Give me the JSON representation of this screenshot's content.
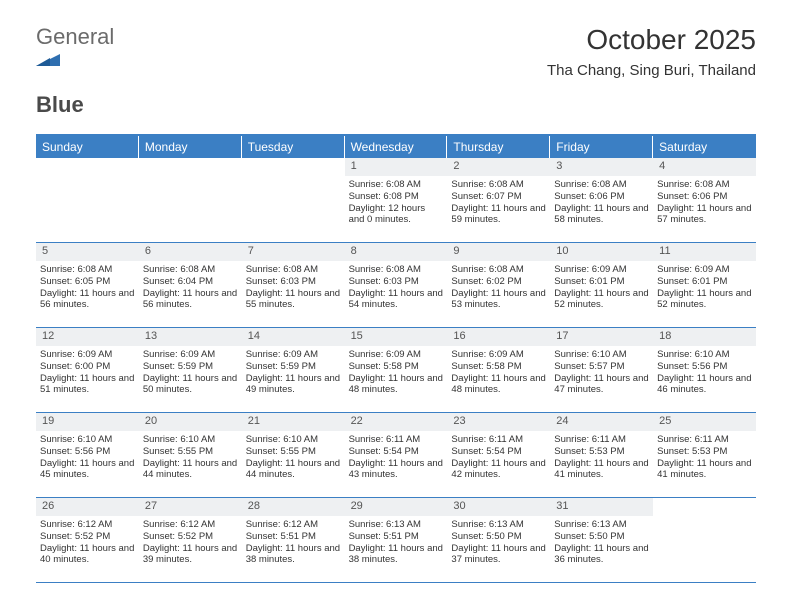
{
  "logo": {
    "text1": "General",
    "text2": "Blue"
  },
  "title": "October 2025",
  "subtitle": "Tha Chang, Sing Buri, Thailand",
  "colors": {
    "header_bg": "#3b7fc4",
    "header_text": "#ffffff",
    "daynum_bg": "#eef0f2",
    "border": "#3b7fc4",
    "text": "#333333",
    "logo_gray": "#6b6b6b",
    "logo_dark": "#4a4a4a",
    "logo_blue": "#2f6fb0",
    "background": "#ffffff"
  },
  "typography": {
    "title_fontsize": 28,
    "subtitle_fontsize": 15,
    "header_fontsize": 12,
    "daynum_fontsize": 11,
    "body_fontsize": 9.5
  },
  "layout": {
    "columns": 7,
    "rows": 5,
    "week_start": "Sunday"
  },
  "day_headers": [
    "Sunday",
    "Monday",
    "Tuesday",
    "Wednesday",
    "Thursday",
    "Friday",
    "Saturday"
  ],
  "weeks": [
    [
      {
        "empty": true
      },
      {
        "empty": true
      },
      {
        "empty": true
      },
      {
        "num": "1",
        "sunrise": "6:08 AM",
        "sunset": "6:08 PM",
        "daylight": "12 hours and 0 minutes."
      },
      {
        "num": "2",
        "sunrise": "6:08 AM",
        "sunset": "6:07 PM",
        "daylight": "11 hours and 59 minutes."
      },
      {
        "num": "3",
        "sunrise": "6:08 AM",
        "sunset": "6:06 PM",
        "daylight": "11 hours and 58 minutes."
      },
      {
        "num": "4",
        "sunrise": "6:08 AM",
        "sunset": "6:06 PM",
        "daylight": "11 hours and 57 minutes."
      }
    ],
    [
      {
        "num": "5",
        "sunrise": "6:08 AM",
        "sunset": "6:05 PM",
        "daylight": "11 hours and 56 minutes."
      },
      {
        "num": "6",
        "sunrise": "6:08 AM",
        "sunset": "6:04 PM",
        "daylight": "11 hours and 56 minutes."
      },
      {
        "num": "7",
        "sunrise": "6:08 AM",
        "sunset": "6:03 PM",
        "daylight": "11 hours and 55 minutes."
      },
      {
        "num": "8",
        "sunrise": "6:08 AM",
        "sunset": "6:03 PM",
        "daylight": "11 hours and 54 minutes."
      },
      {
        "num": "9",
        "sunrise": "6:08 AM",
        "sunset": "6:02 PM",
        "daylight": "11 hours and 53 minutes."
      },
      {
        "num": "10",
        "sunrise": "6:09 AM",
        "sunset": "6:01 PM",
        "daylight": "11 hours and 52 minutes."
      },
      {
        "num": "11",
        "sunrise": "6:09 AM",
        "sunset": "6:01 PM",
        "daylight": "11 hours and 52 minutes."
      }
    ],
    [
      {
        "num": "12",
        "sunrise": "6:09 AM",
        "sunset": "6:00 PM",
        "daylight": "11 hours and 51 minutes."
      },
      {
        "num": "13",
        "sunrise": "6:09 AM",
        "sunset": "5:59 PM",
        "daylight": "11 hours and 50 minutes."
      },
      {
        "num": "14",
        "sunrise": "6:09 AM",
        "sunset": "5:59 PM",
        "daylight": "11 hours and 49 minutes."
      },
      {
        "num": "15",
        "sunrise": "6:09 AM",
        "sunset": "5:58 PM",
        "daylight": "11 hours and 48 minutes."
      },
      {
        "num": "16",
        "sunrise": "6:09 AM",
        "sunset": "5:58 PM",
        "daylight": "11 hours and 48 minutes."
      },
      {
        "num": "17",
        "sunrise": "6:10 AM",
        "sunset": "5:57 PM",
        "daylight": "11 hours and 47 minutes."
      },
      {
        "num": "18",
        "sunrise": "6:10 AM",
        "sunset": "5:56 PM",
        "daylight": "11 hours and 46 minutes."
      }
    ],
    [
      {
        "num": "19",
        "sunrise": "6:10 AM",
        "sunset": "5:56 PM",
        "daylight": "11 hours and 45 minutes."
      },
      {
        "num": "20",
        "sunrise": "6:10 AM",
        "sunset": "5:55 PM",
        "daylight": "11 hours and 44 minutes."
      },
      {
        "num": "21",
        "sunrise": "6:10 AM",
        "sunset": "5:55 PM",
        "daylight": "11 hours and 44 minutes."
      },
      {
        "num": "22",
        "sunrise": "6:11 AM",
        "sunset": "5:54 PM",
        "daylight": "11 hours and 43 minutes."
      },
      {
        "num": "23",
        "sunrise": "6:11 AM",
        "sunset": "5:54 PM",
        "daylight": "11 hours and 42 minutes."
      },
      {
        "num": "24",
        "sunrise": "6:11 AM",
        "sunset": "5:53 PM",
        "daylight": "11 hours and 41 minutes."
      },
      {
        "num": "25",
        "sunrise": "6:11 AM",
        "sunset": "5:53 PM",
        "daylight": "11 hours and 41 minutes."
      }
    ],
    [
      {
        "num": "26",
        "sunrise": "6:12 AM",
        "sunset": "5:52 PM",
        "daylight": "11 hours and 40 minutes."
      },
      {
        "num": "27",
        "sunrise": "6:12 AM",
        "sunset": "5:52 PM",
        "daylight": "11 hours and 39 minutes."
      },
      {
        "num": "28",
        "sunrise": "6:12 AM",
        "sunset": "5:51 PM",
        "daylight": "11 hours and 38 minutes."
      },
      {
        "num": "29",
        "sunrise": "6:13 AM",
        "sunset": "5:51 PM",
        "daylight": "11 hours and 38 minutes."
      },
      {
        "num": "30",
        "sunrise": "6:13 AM",
        "sunset": "5:50 PM",
        "daylight": "11 hours and 37 minutes."
      },
      {
        "num": "31",
        "sunrise": "6:13 AM",
        "sunset": "5:50 PM",
        "daylight": "11 hours and 36 minutes."
      },
      {
        "empty": true
      }
    ]
  ],
  "labels": {
    "sunrise_prefix": "Sunrise: ",
    "sunset_prefix": "Sunset: ",
    "daylight_prefix": "Daylight: "
  }
}
